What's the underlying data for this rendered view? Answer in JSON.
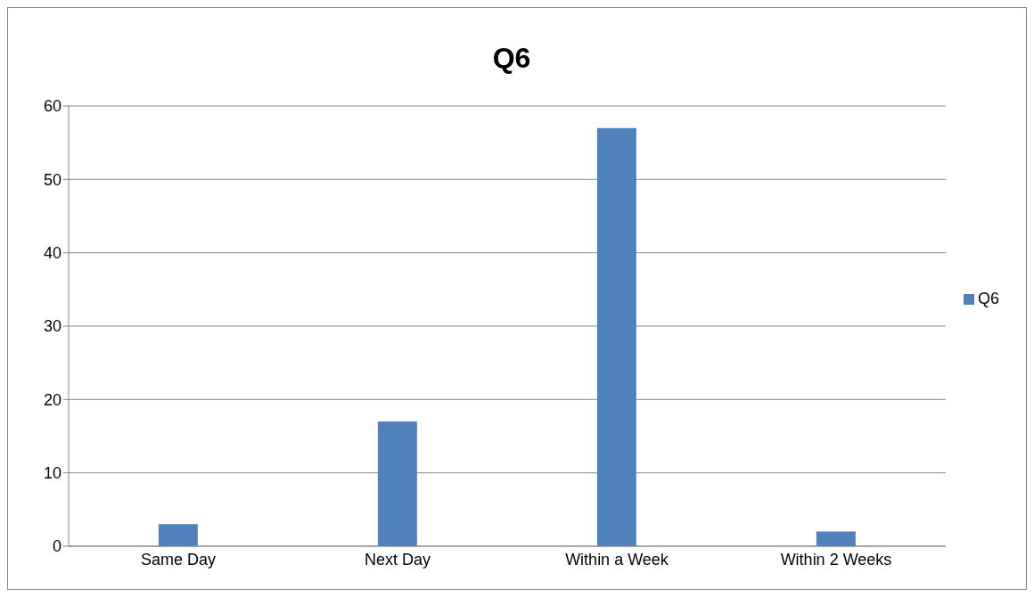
{
  "chart_data": {
    "type": "bar",
    "title": "Q6",
    "categories": [
      "Same Day",
      "Next Day",
      "Within a Week",
      "Within 2 Weeks"
    ],
    "series": [
      {
        "name": "Q6",
        "color": "#4f81bd",
        "values": [
          3,
          17,
          57,
          2
        ]
      }
    ],
    "ylim": [
      0,
      60
    ],
    "yticks": [
      0,
      10,
      20,
      30,
      40,
      50,
      60
    ],
    "grid": "y",
    "legend": "right"
  }
}
